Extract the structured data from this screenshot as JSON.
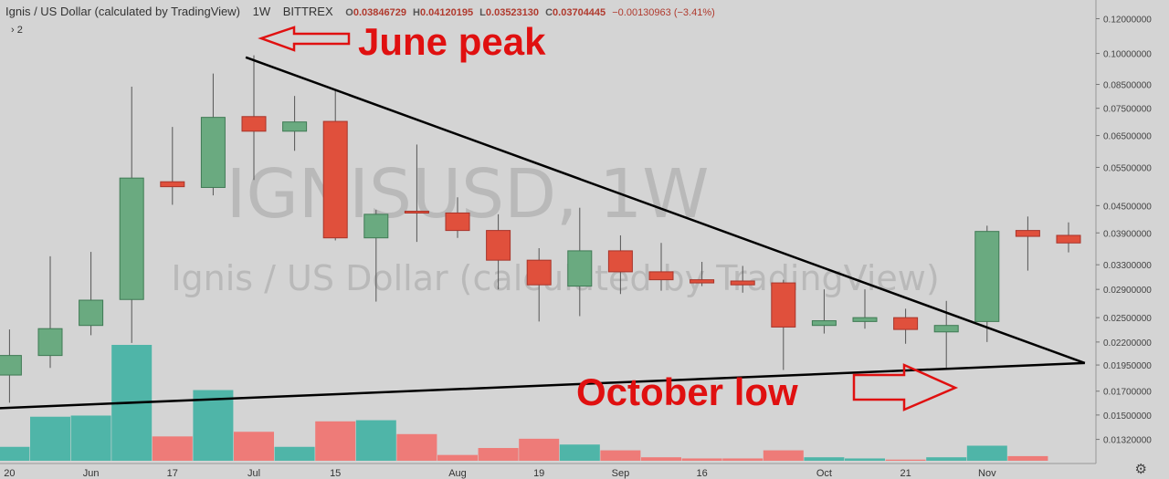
{
  "header": {
    "title": "Ignis / US Dollar (calculated by TradingView)",
    "interval": "1W",
    "exchange": "BITTREX",
    "ohlc": {
      "open_label": "O",
      "open": "0.03846729",
      "high_label": "H",
      "high": "0.04120195",
      "low_label": "L",
      "low": "0.03523130",
      "close_label": "C",
      "close": "0.03704445",
      "change": "−0.00130963 (−3.41%)"
    },
    "collapsed_indicators": "› 2"
  },
  "watermark": {
    "symbol": "IGNISUSD, 1W",
    "description": "Ignis / US Dollar (calculated by TradingView)"
  },
  "annotations": {
    "peak": "June peak",
    "low": "October low"
  },
  "icons": {
    "settings": "gear-icon"
  },
  "colors": {
    "background": "#d4d4d4",
    "up": "#6aaa80",
    "down": "#e0503c",
    "volume_up": "#4fb5a8",
    "volume_down": "#ee7b78",
    "annotation": "#e01010",
    "trendline": "#000000"
  },
  "chart_data": {
    "type": "candlestick",
    "price_scale": "log",
    "ylim": [
      0.0118,
      0.128
    ],
    "y_ticks": [
      "0.12000000",
      "0.10000000",
      "0.08500000",
      "0.07500000",
      "0.06500000",
      "0.05500000",
      "0.04500000",
      "0.03900000",
      "0.03300000",
      "0.02900000",
      "0.02500000",
      "0.02200000",
      "0.01950000",
      "0.01700000",
      "0.01500000",
      "0.01320000"
    ],
    "x_tick_labels": [
      {
        "week": 0,
        "label": "20"
      },
      {
        "week": 2,
        "label": "Jun"
      },
      {
        "week": 4,
        "label": "17"
      },
      {
        "week": 6,
        "label": "Jul"
      },
      {
        "week": 8,
        "label": "15"
      },
      {
        "week": 11,
        "label": "Aug"
      },
      {
        "week": 13,
        "label": "19"
      },
      {
        "week": 15,
        "label": "Sep"
      },
      {
        "week": 17,
        "label": "16"
      },
      {
        "week": 20,
        "label": "Oct"
      },
      {
        "week": 22,
        "label": "21"
      },
      {
        "week": 24,
        "label": "Nov"
      }
    ],
    "candles": [
      {
        "o": 0.0185,
        "h": 0.0235,
        "l": 0.016,
        "c": 0.0205,
        "v": 12
      },
      {
        "o": 0.0205,
        "h": 0.0345,
        "l": 0.0192,
        "c": 0.0236,
        "v": 38
      },
      {
        "o": 0.024,
        "h": 0.0353,
        "l": 0.0228,
        "c": 0.0274,
        "v": 39
      },
      {
        "o": 0.0275,
        "h": 0.084,
        "l": 0.0219,
        "c": 0.052,
        "v": 100
      },
      {
        "o": 0.051,
        "h": 0.068,
        "l": 0.0452,
        "c": 0.0497,
        "v": 21
      },
      {
        "o": 0.0495,
        "h": 0.09,
        "l": 0.0475,
        "c": 0.0715,
        "v": 61
      },
      {
        "o": 0.0718,
        "h": 0.099,
        "l": 0.0515,
        "c": 0.0665,
        "v": 25
      },
      {
        "o": 0.0665,
        "h": 0.08,
        "l": 0.06,
        "c": 0.0698,
        "v": 12
      },
      {
        "o": 0.07,
        "h": 0.083,
        "l": 0.0375,
        "c": 0.038,
        "v": 34
      },
      {
        "o": 0.038,
        "h": 0.044,
        "l": 0.0272,
        "c": 0.043,
        "v": 35
      },
      {
        "o": 0.0437,
        "h": 0.062,
        "l": 0.0372,
        "c": 0.0433,
        "v": 23
      },
      {
        "o": 0.0433,
        "h": 0.047,
        "l": 0.038,
        "c": 0.0395,
        "v": 5
      },
      {
        "o": 0.0395,
        "h": 0.043,
        "l": 0.029,
        "c": 0.0338,
        "v": 11
      },
      {
        "o": 0.0338,
        "h": 0.036,
        "l": 0.0245,
        "c": 0.0297,
        "v": 19
      },
      {
        "o": 0.0295,
        "h": 0.0445,
        "l": 0.0252,
        "c": 0.0355,
        "v": 14
      },
      {
        "o": 0.0355,
        "h": 0.0385,
        "l": 0.0283,
        "c": 0.0318,
        "v": 9
      },
      {
        "o": 0.0318,
        "h": 0.037,
        "l": 0.0288,
        "c": 0.0305,
        "v": 3
      },
      {
        "o": 0.0305,
        "h": 0.0335,
        "l": 0.0295,
        "c": 0.03,
        "v": 2
      },
      {
        "o": 0.0303,
        "h": 0.0328,
        "l": 0.0285,
        "c": 0.0297,
        "v": 2
      },
      {
        "o": 0.03,
        "h": 0.0305,
        "l": 0.019,
        "c": 0.0238,
        "v": 9
      },
      {
        "o": 0.024,
        "h": 0.029,
        "l": 0.023,
        "c": 0.0246,
        "v": 3
      },
      {
        "o": 0.0245,
        "h": 0.029,
        "l": 0.0236,
        "c": 0.025,
        "v": 2
      },
      {
        "o": 0.025,
        "h": 0.0262,
        "l": 0.0218,
        "c": 0.0235,
        "v": 1
      },
      {
        "o": 0.0232,
        "h": 0.0273,
        "l": 0.0191,
        "c": 0.024,
        "v": 3
      },
      {
        "o": 0.0245,
        "h": 0.0405,
        "l": 0.022,
        "c": 0.0393,
        "v": 13
      },
      {
        "o": 0.0395,
        "h": 0.0425,
        "l": 0.032,
        "c": 0.0383,
        "v": 4
      },
      {
        "o": 0.0385,
        "h": 0.0412,
        "l": 0.0352,
        "c": 0.037,
        "v": 0
      }
    ],
    "trendlines": [
      {
        "from": {
          "week": 5.8,
          "price": 0.098
        },
        "to": {
          "week": 26.4,
          "price": 0.0197
        }
      },
      {
        "from": {
          "week": -0.6,
          "price": 0.0155
        },
        "to": {
          "week": 26.4,
          "price": 0.0197
        }
      }
    ]
  }
}
